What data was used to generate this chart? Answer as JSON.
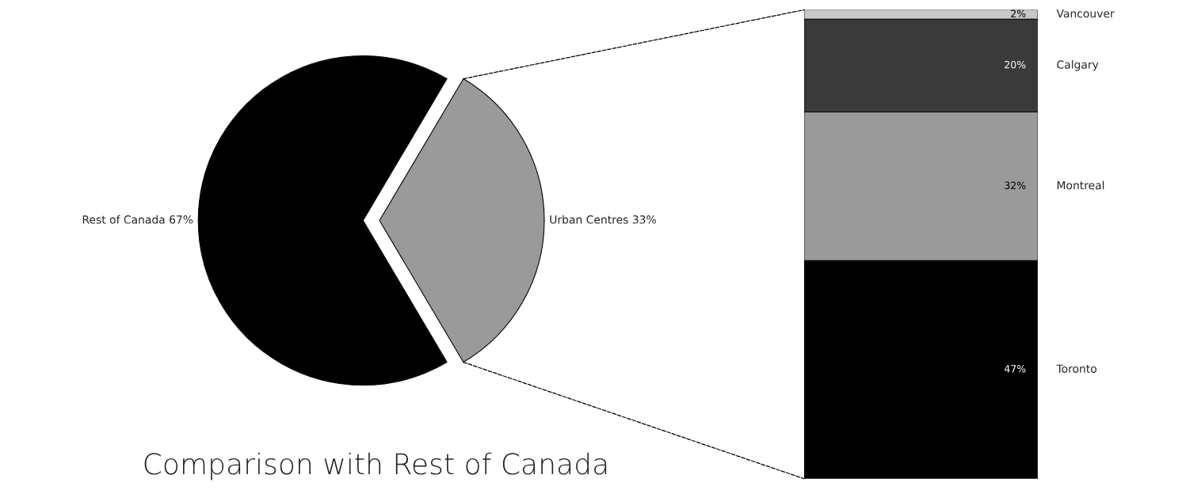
{
  "chart_data": [
    {
      "type": "pie",
      "title": "Comparison with Rest of Canada",
      "categories": [
        "Rest of Canada",
        "Urban Centres"
      ],
      "values": [
        67,
        33
      ],
      "value_labels": [
        "67%",
        "33%"
      ],
      "colors": [
        "#000000",
        "#9a9a9a"
      ]
    },
    {
      "type": "bar",
      "stacked": true,
      "categories": [
        null
      ],
      "tick_labels": false,
      "series": [
        {
          "name": "Toronto",
          "color": "#000000",
          "values": [
            47
          ],
          "value_labels": [
            "47%"
          ]
        },
        {
          "name": "Montreal",
          "color": "#9a9a9a",
          "values": [
            32
          ],
          "value_labels": [
            "32%"
          ]
        },
        {
          "name": "Calgary",
          "color": "#3a3a3a",
          "values": [
            20
          ],
          "value_labels": [
            "20%"
          ]
        },
        {
          "name": "Vancouver",
          "color": "#c8c8c8",
          "values": [
            2
          ],
          "value_labels": [
            "2%"
          ]
        }
      ]
    }
  ]
}
